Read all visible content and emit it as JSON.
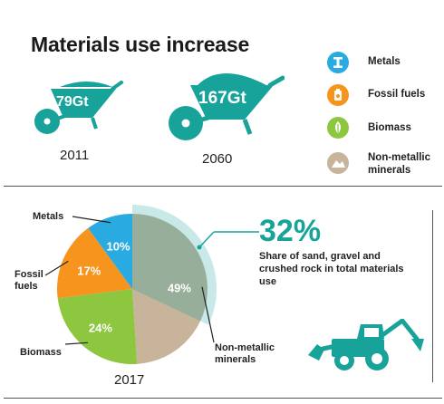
{
  "title": "Materials use increase",
  "wheelbarrows": [
    {
      "value": "79Gt",
      "year": "2011"
    },
    {
      "value": "167Gt",
      "year": "2060"
    }
  ],
  "legend": [
    {
      "label": "Metals",
      "color": "#29abe2",
      "icon": "metal-bar-icon"
    },
    {
      "label": "Fossil fuels",
      "color": "#f7941d",
      "icon": "fuel-canister-icon"
    },
    {
      "label": "Biomass",
      "color": "#8dc63f",
      "icon": "leaf-icon"
    },
    {
      "label": "Non-metallic minerals",
      "color": "#c8b49a",
      "icon": "rocks-icon"
    }
  ],
  "chart_data": {
    "type": "pie",
    "year": "2017",
    "slices": [
      {
        "name": "Metals",
        "value": 10,
        "label": "10%",
        "color": "#29abe2"
      },
      {
        "name": "Fossil fuels",
        "value": 17,
        "label": "17%",
        "color": "#f7941d"
      },
      {
        "name": "Biomass",
        "value": 24,
        "label": "24%",
        "color": "#8dc63f"
      },
      {
        "name": "Non-metallic minerals",
        "value": 49,
        "label": "49%",
        "color": "#c8b49a"
      }
    ],
    "highlight": {
      "value": 32,
      "label": "32%",
      "description": "Share of sand, gravel and crushed rock in total materials use"
    }
  },
  "colors": {
    "accent": "#18a39a"
  }
}
